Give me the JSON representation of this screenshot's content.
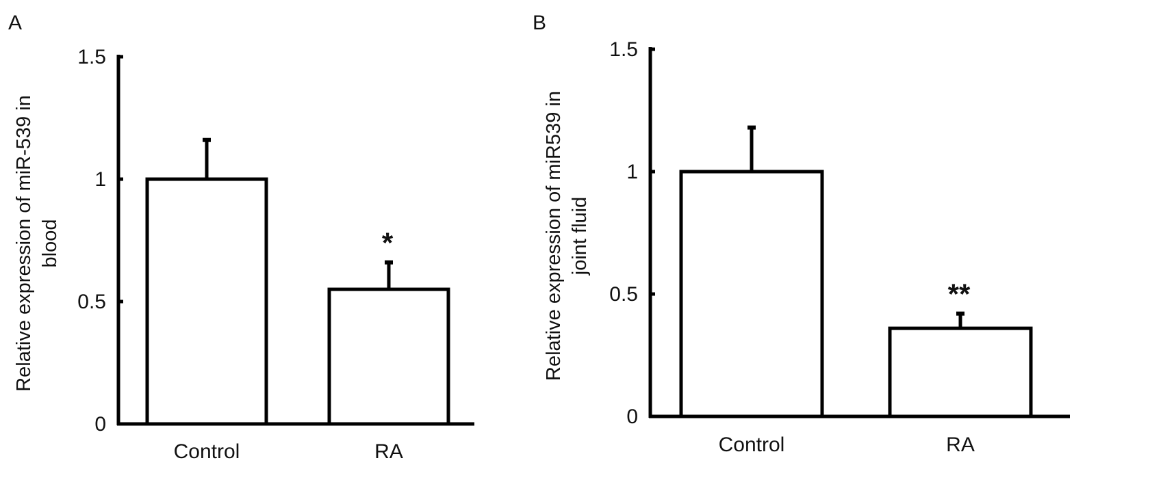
{
  "chart_data": [
    {
      "type": "bar",
      "panel_label": "A",
      "categories": [
        "Control",
        "RA"
      ],
      "values": [
        1.0,
        0.55
      ],
      "error_bars": [
        0.16,
        0.11
      ],
      "annotations": [
        "",
        "*"
      ],
      "yticks": [
        "0",
        "0.5",
        "1",
        "1.5"
      ],
      "ylim": [
        0,
        1.5
      ],
      "ylabel_lines": [
        "Relative expression of miR-539 in",
        "blood"
      ],
      "xlabel": "",
      "title": "",
      "grid": false,
      "bar_fill": "#ffffff",
      "bar_stroke": "#000000"
    },
    {
      "type": "bar",
      "panel_label": "B",
      "categories": [
        "Control",
        "RA"
      ],
      "values": [
        1.0,
        0.36
      ],
      "error_bars": [
        0.18,
        0.06
      ],
      "annotations": [
        "",
        "**"
      ],
      "yticks": [
        "0",
        "0.5",
        "1",
        "1.5"
      ],
      "ylim": [
        0,
        1.5
      ],
      "ylabel_lines": [
        "Relative expression of miR539 in",
        "joint fluid"
      ],
      "xlabel": "",
      "title": "",
      "grid": false,
      "bar_fill": "#ffffff",
      "bar_stroke": "#000000"
    }
  ]
}
